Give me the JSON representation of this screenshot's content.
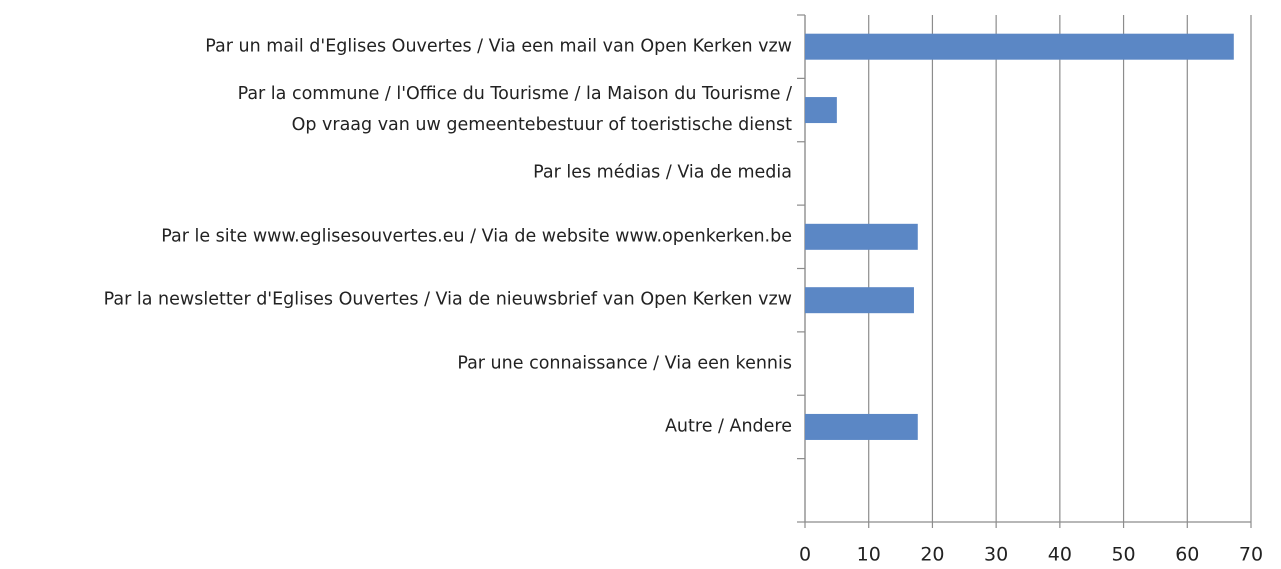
{
  "chart_data": {
    "type": "barh",
    "categories": [
      "Par un mail d'Eglises Ouvertes / Via een mail van Open Kerken vzw",
      "Par la commune / l'Office du Tourisme / la Maison du Tourisme /\nOp vraag van uw gemeentebestuur of toeristische dienst",
      "Par les médias / Via de media",
      "Par le site www.eglisesouvertes.eu / Via de website www.openkerken.be",
      "Par la newsletter d'Eglises Ouvertes / Via de nieuwsbrief van Open Kerken vzw",
      "Par une connaissance / Via een kennis",
      "Autre / Andere",
      null
    ],
    "values": [
      67.3,
      5,
      0,
      17.7,
      17.1,
      0,
      17.7,
      null
    ],
    "color": "#5b87c5",
    "xlim": [
      0,
      70
    ],
    "xticks": [
      0,
      10,
      20,
      30,
      40,
      50,
      60,
      70
    ],
    "grid": true
  }
}
